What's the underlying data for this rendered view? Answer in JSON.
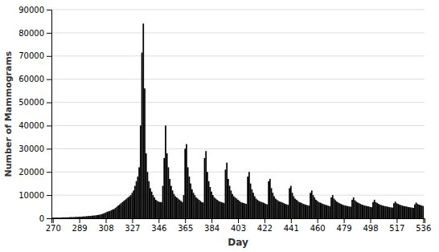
{
  "chart_data": {
    "type": "bar",
    "xlabel": "Day",
    "ylabel": "Number of Mammograms",
    "color": "#000000",
    "grid": true,
    "xlim": [
      269,
      537
    ],
    "ylim": [
      0,
      90000
    ],
    "xticks": [
      270,
      289,
      308,
      327,
      346,
      365,
      384,
      403,
      422,
      441,
      460,
      479,
      498,
      517,
      536
    ],
    "yticks": [
      0,
      10000,
      20000,
      30000,
      40000,
      50000,
      60000,
      70000,
      80000,
      90000
    ],
    "x": [
      270,
      271,
      272,
      273,
      274,
      275,
      276,
      277,
      278,
      279,
      280,
      281,
      282,
      283,
      284,
      285,
      286,
      287,
      288,
      289,
      290,
      291,
      292,
      293,
      294,
      295,
      296,
      297,
      298,
      299,
      300,
      301,
      302,
      303,
      304,
      305,
      306,
      307,
      308,
      309,
      310,
      311,
      312,
      313,
      314,
      315,
      316,
      317,
      318,
      319,
      320,
      321,
      322,
      323,
      324,
      325,
      326,
      327,
      328,
      329,
      330,
      331,
      332,
      333,
      334,
      335,
      336,
      337,
      338,
      339,
      340,
      341,
      342,
      343,
      344,
      345,
      346,
      347,
      348,
      349,
      350,
      351,
      352,
      353,
      354,
      355,
      356,
      357,
      358,
      359,
      360,
      361,
      362,
      363,
      364,
      365,
      366,
      367,
      368,
      369,
      370,
      371,
      372,
      373,
      374,
      375,
      376,
      377,
      378,
      379,
      380,
      381,
      382,
      383,
      384,
      385,
      386,
      387,
      388,
      389,
      390,
      391,
      392,
      393,
      394,
      395,
      396,
      397,
      398,
      399,
      400,
      401,
      402,
      403,
      404,
      405,
      406,
      407,
      408,
      409,
      410,
      411,
      412,
      413,
      414,
      415,
      416,
      417,
      418,
      419,
      420,
      421,
      422,
      423,
      424,
      425,
      426,
      427,
      428,
      429,
      430,
      431,
      432,
      433,
      434,
      435,
      436,
      437,
      438,
      439,
      440,
      441,
      442,
      443,
      444,
      445,
      446,
      447,
      448,
      449,
      450,
      451,
      452,
      453,
      454,
      455,
      456,
      457,
      458,
      459,
      460,
      461,
      462,
      463,
      464,
      465,
      466,
      467,
      468,
      469,
      470,
      471,
      472,
      473,
      474,
      475,
      476,
      477,
      478,
      479,
      480,
      481,
      482,
      483,
      484,
      485,
      486,
      487,
      488,
      489,
      490,
      491,
      492,
      493,
      494,
      495,
      496,
      497,
      498,
      499,
      500,
      501,
      502,
      503,
      504,
      505,
      506,
      507,
      508,
      509,
      510,
      511,
      512,
      513,
      514,
      515,
      516,
      517,
      518,
      519,
      520,
      521,
      522,
      523,
      524,
      525,
      526,
      527,
      528,
      529,
      530,
      531,
      532,
      533,
      534,
      535,
      536
    ],
    "values": [
      300,
      300,
      300,
      300,
      300,
      300,
      300,
      400,
      400,
      400,
      400,
      400,
      500,
      500,
      500,
      500,
      600,
      600,
      600,
      700,
      700,
      700,
      800,
      800,
      900,
      900,
      1000,
      1000,
      1100,
      1200,
      1200,
      1300,
      1400,
      1500,
      1600,
      1800,
      2000,
      2200,
      2500,
      2800,
      3000,
      3200,
      3500,
      3800,
      4000,
      4500,
      5000,
      5500,
      6000,
      6500,
      7000,
      7500,
      8000,
      8500,
      9000,
      9500,
      10000,
      11000,
      12000,
      14000,
      16000,
      18000,
      22000,
      40000,
      71500,
      84000,
      56000,
      28000,
      20000,
      16000,
      13000,
      11500,
      10000,
      9000,
      8000,
      7500,
      7200,
      7000,
      7000,
      14000,
      26000,
      40000,
      28000,
      22000,
      17000,
      14000,
      12000,
      10500,
      9500,
      9000,
      8500,
      8000,
      7500,
      7000,
      10000,
      30000,
      32000,
      22000,
      18000,
      15000,
      12500,
      11000,
      10000,
      9000,
      8500,
      8000,
      7500,
      7000,
      6800,
      26000,
      29000,
      20000,
      16000,
      13500,
      11500,
      10000,
      9000,
      8500,
      8000,
      7500,
      7200,
      7000,
      6800,
      6600,
      21000,
      24000,
      17000,
      14000,
      12000,
      10500,
      9500,
      9000,
      8500,
      8000,
      7500,
      7000,
      6800,
      6600,
      6400,
      6200,
      18000,
      20000,
      15000,
      12500,
      11000,
      9500,
      8500,
      8000,
      7500,
      7200,
      7000,
      6800,
      6500,
      6200,
      6000,
      16000,
      17000,
      13000,
      11000,
      9500,
      8500,
      8000,
      7500,
      7200,
      7000,
      6800,
      6500,
      6200,
      6000,
      5800,
      13000,
      14000,
      11000,
      9500,
      8500,
      8000,
      7500,
      7000,
      6800,
      6500,
      6200,
      6000,
      5800,
      5600,
      5500,
      11000,
      12000,
      10000,
      9000,
      8000,
      7500,
      7000,
      6800,
      6500,
      6200,
      6000,
      5800,
      5600,
      5400,
      5200,
      9000,
      10000,
      8500,
      7800,
      7200,
      6800,
      6500,
      6200,
      5900,
      5700,
      5500,
      5400,
      5200,
      5100,
      5000,
      8000,
      9000,
      7800,
      7200,
      6800,
      6500,
      6200,
      5900,
      5700,
      5500,
      5400,
      5200,
      5100,
      4900,
      4800,
      7000,
      8000,
      7000,
      6600,
      6200,
      5900,
      5700,
      5500,
      5300,
      5200,
      5100,
      4900,
      4800,
      4700,
      4600,
      6500,
      7200,
      6500,
      6200,
      5900,
      5700,
      5500,
      5300,
      5200,
      5100,
      4900,
      4800,
      4700,
      4600,
      4500,
      6000,
      6800,
      6200,
      5900,
      5700,
      5500,
      5300
    ]
  }
}
